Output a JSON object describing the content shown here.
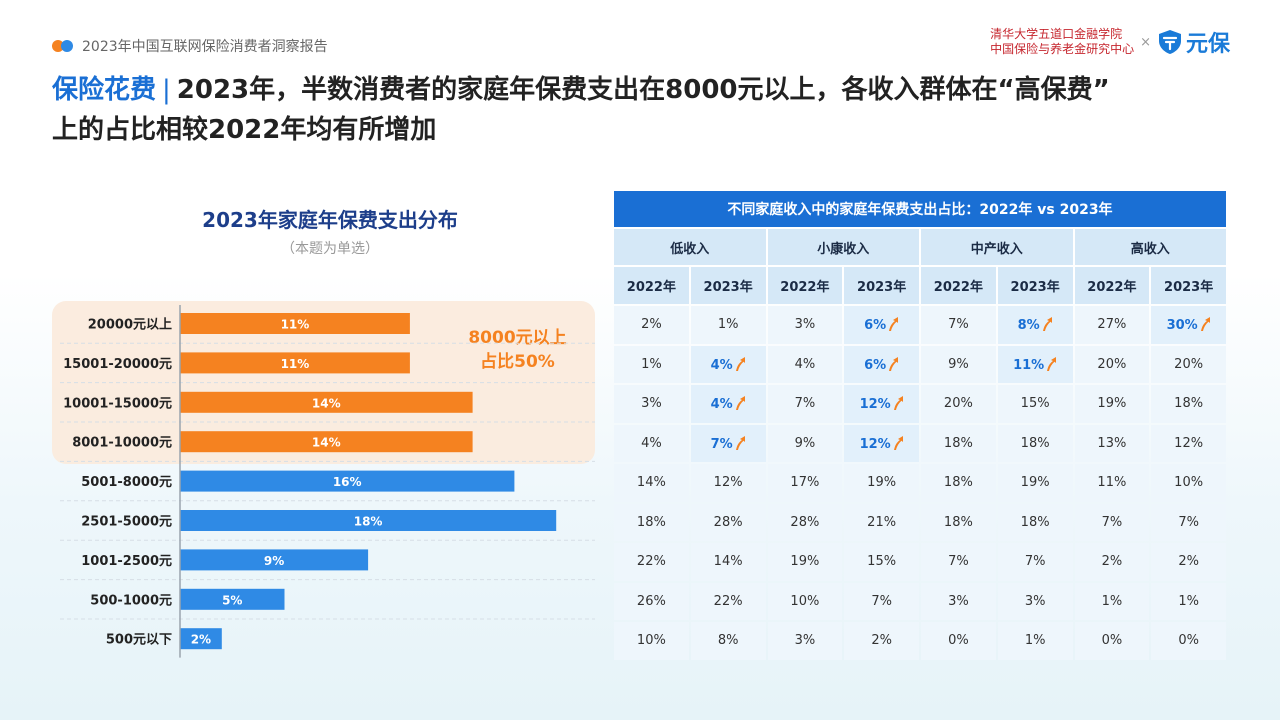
{
  "header": {
    "report_title": "2023年中国互联网保险消费者洞察报告",
    "org_line1": "清华大学五道口金融学院",
    "org_line2": "中国保险与养老金研究中心",
    "times": "×",
    "brand_name": "元保"
  },
  "title": {
    "highlight": "保险花费",
    "separator": "|",
    "line1_rest": "2023年，半数消费者的家庭年保费支出在8000元以上，各收入群体在“高保费”",
    "line2": "上的占比相较2022年均有所增加"
  },
  "chart_data": {
    "type": "bar",
    "orientation": "horizontal",
    "title": "2023年家庭年保费支出分布",
    "subtitle": "（本题为单选）",
    "categories": [
      "20000元以上",
      "15001-20000元",
      "10001-15000元",
      "8001-10000元",
      "5001-8000元",
      "2501-5000元",
      "1001-2500元",
      "500-1000元",
      "500元以下"
    ],
    "values": [
      11,
      11,
      14,
      14,
      16,
      18,
      9,
      5,
      2
    ],
    "value_labels": [
      "11%",
      "11%",
      "14%",
      "14%",
      "16%",
      "18%",
      "9%",
      "5%",
      "2%"
    ],
    "highlight_count": 4,
    "highlight_color": "#f58220",
    "base_color": "#2f8ae5",
    "annotation_line1": "8000元以上",
    "annotation_line2": "占比50%"
  },
  "table": {
    "caption": "不同家庭收入中的家庭年保费支出占比：2022年 vs 2023年",
    "groups": [
      "低收入",
      "小康收入",
      "中产收入",
      "高收入"
    ],
    "years": [
      "2022年",
      "2023年",
      "2022年",
      "2023年",
      "2022年",
      "2023年",
      "2022年",
      "2023年"
    ],
    "rows": [
      [
        {
          "v": "2%"
        },
        {
          "v": "1%"
        },
        {
          "v": "3%"
        },
        {
          "v": "6%",
          "up": true
        },
        {
          "v": "7%"
        },
        {
          "v": "8%",
          "up": true
        },
        {
          "v": "27%"
        },
        {
          "v": "30%",
          "up": true
        }
      ],
      [
        {
          "v": "1%"
        },
        {
          "v": "4%",
          "up": true
        },
        {
          "v": "4%"
        },
        {
          "v": "6%",
          "up": true
        },
        {
          "v": "9%"
        },
        {
          "v": "11%",
          "up": true
        },
        {
          "v": "20%"
        },
        {
          "v": "20%"
        }
      ],
      [
        {
          "v": "3%"
        },
        {
          "v": "4%",
          "up": true
        },
        {
          "v": "7%"
        },
        {
          "v": "12%",
          "up": true
        },
        {
          "v": "20%"
        },
        {
          "v": "15%"
        },
        {
          "v": "19%"
        },
        {
          "v": "18%"
        }
      ],
      [
        {
          "v": "4%"
        },
        {
          "v": "7%",
          "up": true
        },
        {
          "v": "9%"
        },
        {
          "v": "12%",
          "up": true
        },
        {
          "v": "18%"
        },
        {
          "v": "18%"
        },
        {
          "v": "13%"
        },
        {
          "v": "12%"
        }
      ],
      [
        {
          "v": "14%"
        },
        {
          "v": "12%"
        },
        {
          "v": "17%"
        },
        {
          "v": "19%"
        },
        {
          "v": "18%"
        },
        {
          "v": "19%"
        },
        {
          "v": "11%"
        },
        {
          "v": "10%"
        }
      ],
      [
        {
          "v": "18%"
        },
        {
          "v": "28%"
        },
        {
          "v": "28%"
        },
        {
          "v": "21%"
        },
        {
          "v": "18%"
        },
        {
          "v": "18%"
        },
        {
          "v": "7%"
        },
        {
          "v": "7%"
        }
      ],
      [
        {
          "v": "22%"
        },
        {
          "v": "14%"
        },
        {
          "v": "19%"
        },
        {
          "v": "15%"
        },
        {
          "v": "7%"
        },
        {
          "v": "7%"
        },
        {
          "v": "2%"
        },
        {
          "v": "2%"
        }
      ],
      [
        {
          "v": "26%"
        },
        {
          "v": "22%"
        },
        {
          "v": "10%"
        },
        {
          "v": "7%"
        },
        {
          "v": "3%"
        },
        {
          "v": "3%"
        },
        {
          "v": "1%"
        },
        {
          "v": "1%"
        }
      ],
      [
        {
          "v": "10%"
        },
        {
          "v": "8%"
        },
        {
          "v": "3%"
        },
        {
          "v": "2%"
        },
        {
          "v": "0%"
        },
        {
          "v": "1%"
        },
        {
          "v": "0%"
        },
        {
          "v": "0%"
        }
      ]
    ],
    "up_icon": "up-arrow-icon",
    "up_color": "#f58220"
  }
}
